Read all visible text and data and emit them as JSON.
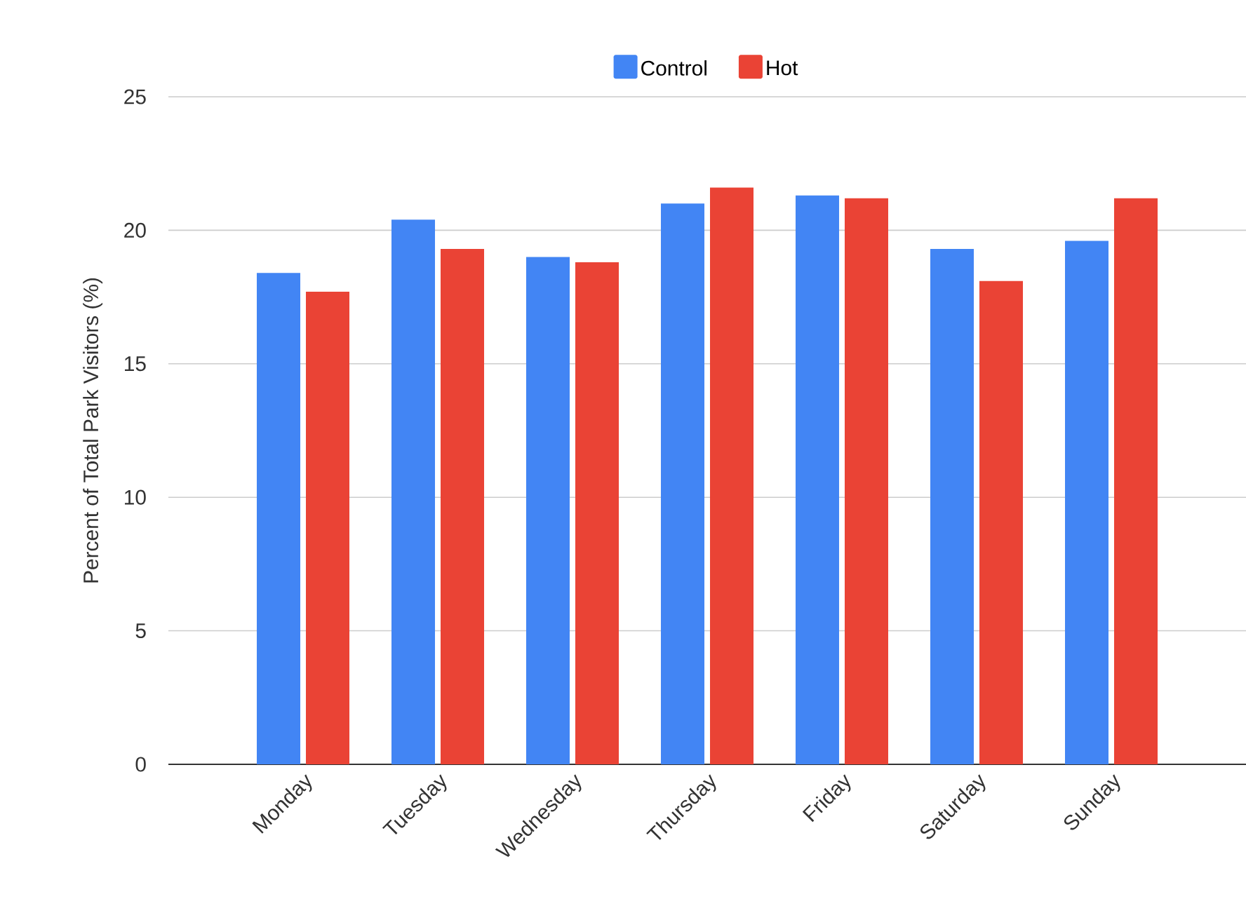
{
  "chart_data": {
    "type": "bar",
    "ylabel": "Percent of Total Park Visitors (%)",
    "categories": [
      "Monday",
      "Tuesday",
      "Wednesday",
      "Thursday",
      "Friday",
      "Saturday",
      "Sunday"
    ],
    "series": [
      {
        "name": "Control",
        "color": "#4285f4",
        "values": [
          18.4,
          20.4,
          19.0,
          21.0,
          21.3,
          19.3,
          19.6
        ]
      },
      {
        "name": "Hot",
        "color": "#ea4335",
        "values": [
          17.7,
          19.3,
          18.8,
          21.6,
          21.2,
          18.1,
          21.2
        ]
      }
    ],
    "ylim": [
      0,
      25
    ],
    "yticks": [
      0,
      5,
      10,
      15,
      20,
      25
    ],
    "grid": "y",
    "legend": "top"
  }
}
